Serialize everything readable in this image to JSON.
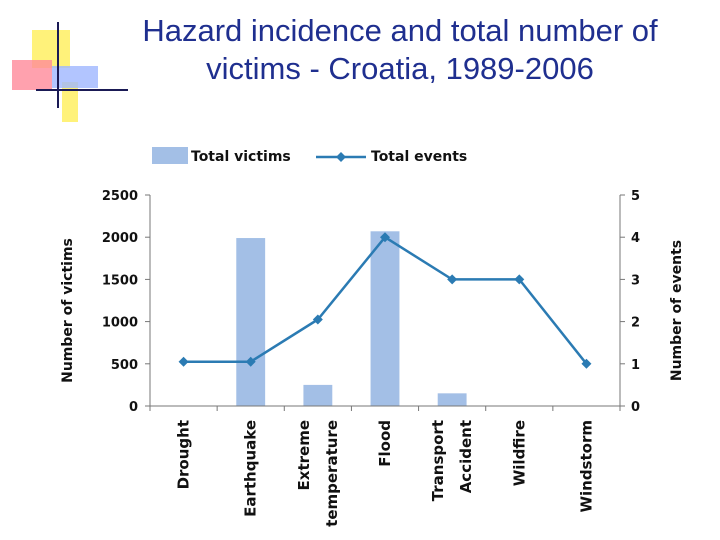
{
  "title": "Hazard incidence and total number of victims - Croatia, 1989-2006",
  "colors": {
    "bar": "#a3bfe6",
    "line": "#2b7bb3",
    "title": "#1f2f8f"
  },
  "chart_data": {
    "type": "bar",
    "title": "Hazard incidence and total number of victims - Croatia, 1989-2006",
    "categories": [
      [
        "Drought"
      ],
      [
        "Earthquake"
      ],
      [
        "Extreme",
        "temperature"
      ],
      [
        "Flood"
      ],
      [
        "Transport",
        "Accident"
      ],
      [
        "Wildfire"
      ],
      [
        "Windstorm"
      ]
    ],
    "series": [
      {
        "name": "Total victims",
        "type": "bar",
        "axis": "left",
        "values": [
          0,
          1990,
          250,
          2070,
          150,
          0,
          0
        ]
      },
      {
        "name": "Total events",
        "type": "line",
        "axis": "right",
        "values": [
          1.05,
          1.05,
          2.05,
          4,
          3,
          3,
          1
        ]
      }
    ],
    "ylabel": "Number of victims",
    "y2label": "Number of events",
    "ylim": [
      0,
      2500
    ],
    "y2lim": [
      0,
      5
    ],
    "yticks": [
      0,
      500,
      1000,
      1500,
      2000,
      2500
    ],
    "y2ticks": [
      0,
      1,
      2,
      3,
      4,
      5
    ],
    "legend": "top",
    "grid": false
  }
}
